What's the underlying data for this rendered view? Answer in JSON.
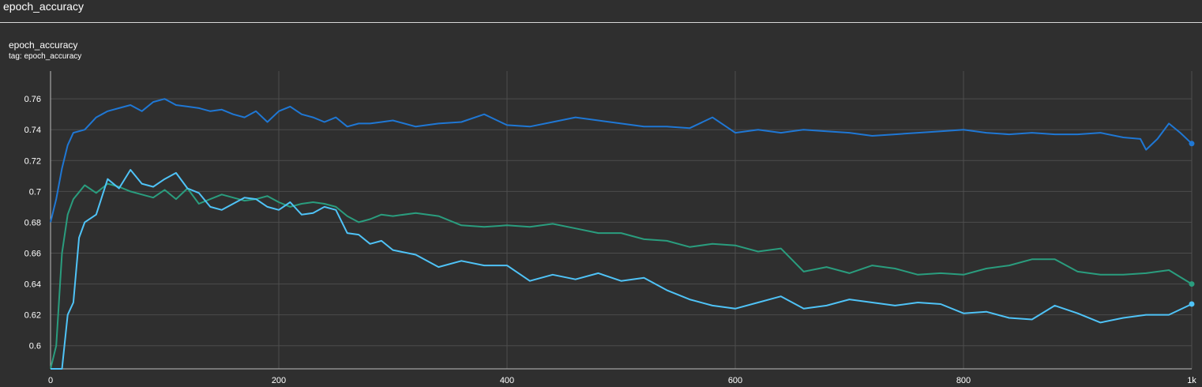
{
  "section": {
    "title": "epoch_accuracy"
  },
  "card": {
    "title": "epoch_accuracy",
    "tag": "tag: epoch_accuracy"
  },
  "colors": {
    "background": "#2f2f2f",
    "grid": "#4d4d4d",
    "series_blue": "#1f77d4",
    "series_green": "#2a9d7e",
    "series_cyan": "#4fc3f7"
  },
  "chart_data": {
    "type": "line",
    "title": "epoch_accuracy",
    "xlabel": "",
    "ylabel": "",
    "xlim": [
      0,
      1000
    ],
    "ylim": [
      0.585,
      0.778
    ],
    "grid": true,
    "x_ticks": [
      0,
      200,
      400,
      600,
      800,
      1000
    ],
    "x_tick_labels": [
      "0",
      "200",
      "400",
      "600",
      "800",
      "1k"
    ],
    "y_ticks": [
      0.6,
      0.62,
      0.64,
      0.66,
      0.68,
      0.7,
      0.72,
      0.74,
      0.76
    ],
    "y_tick_labels": [
      "0.6",
      "0.62",
      "0.64",
      "0.66",
      "0.68",
      "0.7",
      "0.72",
      "0.74",
      "0.76"
    ],
    "series": [
      {
        "color": "#1f77d4",
        "x": [
          0,
          5,
          10,
          15,
          20,
          30,
          40,
          50,
          60,
          70,
          80,
          90,
          100,
          110,
          120,
          130,
          140,
          150,
          160,
          170,
          180,
          190,
          200,
          210,
          220,
          230,
          240,
          250,
          260,
          270,
          280,
          290,
          300,
          320,
          340,
          360,
          380,
          400,
          420,
          440,
          460,
          480,
          500,
          520,
          540,
          560,
          580,
          600,
          620,
          640,
          660,
          680,
          700,
          720,
          740,
          760,
          780,
          800,
          820,
          840,
          860,
          880,
          900,
          920,
          940,
          955,
          960,
          970,
          980,
          990,
          1000
        ],
        "y": [
          0.68,
          0.695,
          0.715,
          0.73,
          0.738,
          0.74,
          0.748,
          0.752,
          0.754,
          0.756,
          0.752,
          0.758,
          0.76,
          0.756,
          0.755,
          0.754,
          0.752,
          0.753,
          0.75,
          0.748,
          0.752,
          0.745,
          0.752,
          0.755,
          0.75,
          0.748,
          0.745,
          0.748,
          0.742,
          0.744,
          0.744,
          0.745,
          0.746,
          0.742,
          0.744,
          0.745,
          0.75,
          0.743,
          0.742,
          0.745,
          0.748,
          0.746,
          0.744,
          0.742,
          0.742,
          0.741,
          0.748,
          0.738,
          0.74,
          0.738,
          0.74,
          0.739,
          0.738,
          0.736,
          0.737,
          0.738,
          0.739,
          0.74,
          0.738,
          0.737,
          0.738,
          0.737,
          0.737,
          0.738,
          0.735,
          0.734,
          0.727,
          0.734,
          0.744,
          0.738,
          0.731
        ]
      },
      {
        "color": "#2a9d7e",
        "x": [
          0,
          5,
          10,
          15,
          20,
          30,
          40,
          50,
          60,
          70,
          80,
          90,
          100,
          110,
          120,
          130,
          140,
          150,
          160,
          170,
          180,
          190,
          200,
          210,
          220,
          230,
          240,
          250,
          260,
          270,
          280,
          290,
          300,
          320,
          340,
          360,
          380,
          400,
          420,
          440,
          460,
          480,
          500,
          520,
          540,
          560,
          580,
          600,
          620,
          640,
          660,
          680,
          700,
          720,
          740,
          760,
          780,
          800,
          820,
          840,
          860,
          880,
          900,
          920,
          940,
          960,
          980,
          1000
        ],
        "y": [
          0.585,
          0.6,
          0.66,
          0.685,
          0.695,
          0.704,
          0.699,
          0.705,
          0.703,
          0.7,
          0.698,
          0.696,
          0.701,
          0.695,
          0.702,
          0.692,
          0.695,
          0.698,
          0.696,
          0.694,
          0.695,
          0.697,
          0.693,
          0.69,
          0.692,
          0.693,
          0.692,
          0.69,
          0.684,
          0.68,
          0.682,
          0.685,
          0.684,
          0.686,
          0.684,
          0.678,
          0.677,
          0.678,
          0.677,
          0.679,
          0.676,
          0.673,
          0.673,
          0.669,
          0.668,
          0.664,
          0.666,
          0.665,
          0.661,
          0.663,
          0.648,
          0.651,
          0.647,
          0.652,
          0.65,
          0.646,
          0.647,
          0.646,
          0.65,
          0.652,
          0.656,
          0.656,
          0.648,
          0.646,
          0.646,
          0.647,
          0.649,
          0.64
        ]
      },
      {
        "color": "#4fc3f7",
        "x": [
          0,
          5,
          10,
          15,
          20,
          25,
          30,
          40,
          50,
          60,
          70,
          80,
          90,
          100,
          110,
          120,
          130,
          140,
          150,
          160,
          170,
          180,
          190,
          200,
          210,
          220,
          230,
          240,
          250,
          260,
          270,
          280,
          290,
          300,
          320,
          340,
          360,
          380,
          400,
          420,
          440,
          460,
          480,
          500,
          520,
          540,
          560,
          580,
          600,
          620,
          640,
          660,
          680,
          700,
          720,
          740,
          760,
          780,
          800,
          820,
          840,
          860,
          880,
          900,
          920,
          940,
          960,
          980,
          1000
        ],
        "y": [
          0.585,
          0.585,
          0.585,
          0.62,
          0.628,
          0.67,
          0.68,
          0.685,
          0.708,
          0.702,
          0.714,
          0.705,
          0.703,
          0.708,
          0.712,
          0.702,
          0.699,
          0.69,
          0.688,
          0.692,
          0.696,
          0.695,
          0.69,
          0.688,
          0.693,
          0.685,
          0.686,
          0.69,
          0.688,
          0.673,
          0.672,
          0.666,
          0.668,
          0.662,
          0.659,
          0.651,
          0.655,
          0.652,
          0.652,
          0.642,
          0.646,
          0.643,
          0.647,
          0.642,
          0.644,
          0.636,
          0.63,
          0.626,
          0.624,
          0.628,
          0.632,
          0.624,
          0.626,
          0.63,
          0.628,
          0.626,
          0.628,
          0.627,
          0.621,
          0.622,
          0.618,
          0.617,
          0.626,
          0.621,
          0.615,
          0.618,
          0.62,
          0.62,
          0.627
        ]
      }
    ]
  }
}
